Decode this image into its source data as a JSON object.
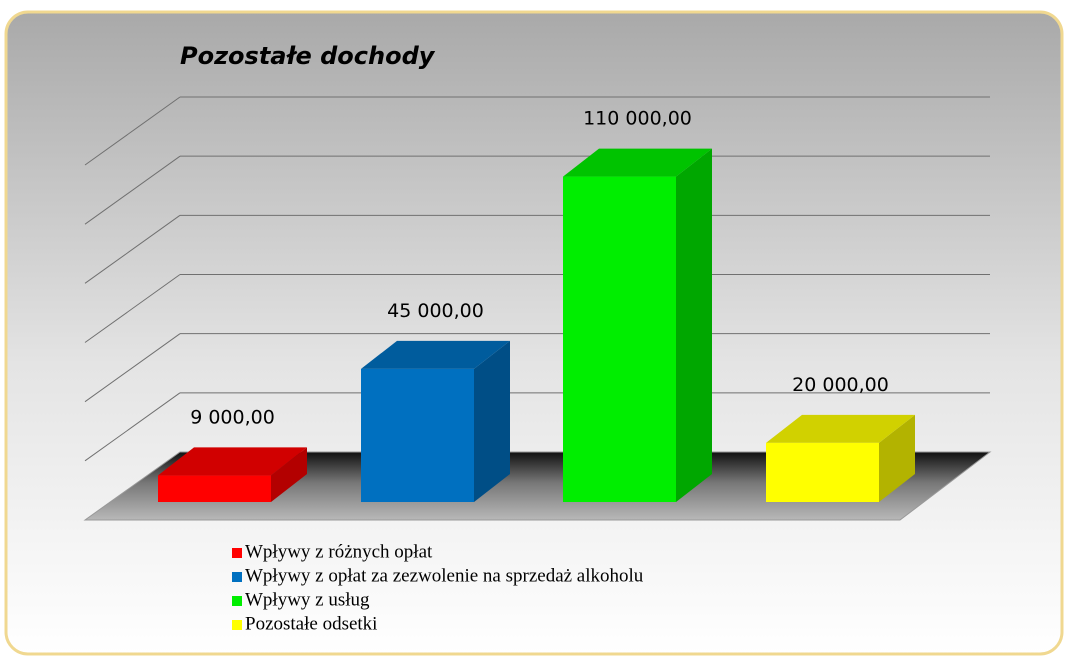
{
  "chart_data": {
    "type": "bar3d",
    "title": "Pozostałe dochody",
    "series": [
      {
        "name": "Wpływy  z różnych  opłat",
        "color": "#ff0000",
        "values": [
          9000
        ],
        "value_labels": [
          "9 000,00"
        ]
      },
      {
        "name": "Wpływy  z opłat  za zezwolenie  na sprzedaż  alkoholu",
        "color": "#0070c0",
        "values": [
          45000
        ],
        "value_labels": [
          "45 000,00"
        ]
      },
      {
        "name": "Wpływy  z usług",
        "color": "#00ee00",
        "values": [
          110000
        ],
        "value_labels": [
          "110 000,00"
        ]
      },
      {
        "name": "Pozostałe odsetki",
        "color": "#ffff00",
        "values": [
          20000
        ],
        "value_labels": [
          "20 000,00"
        ]
      }
    ],
    "ylim": [
      0,
      120000
    ],
    "yticks": [
      0,
      20000,
      40000,
      60000,
      80000,
      100000,
      120000
    ],
    "grid": true
  }
}
